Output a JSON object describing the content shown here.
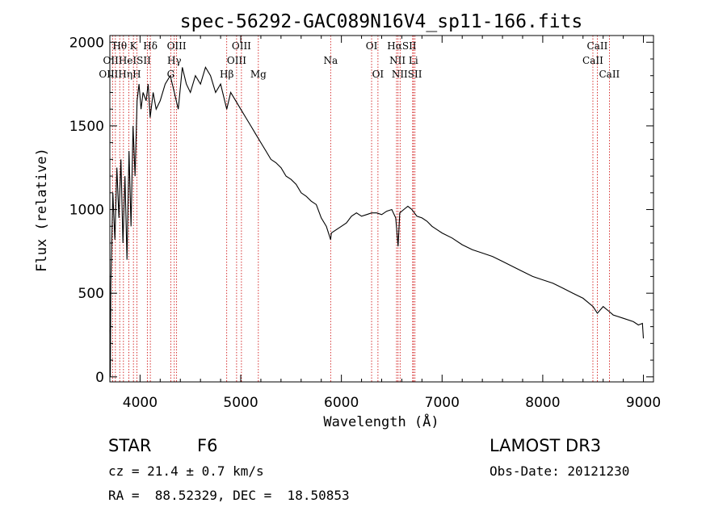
{
  "chart_data": {
    "type": "line",
    "title": "spec-56292-GAC089N16V4_sp11-166.fits",
    "xlabel": "Wavelength (Å)",
    "ylabel": "Flux (relative)",
    "xlim": [
      3700,
      9100
    ],
    "ylim": [
      -30,
      2040
    ],
    "xticks": [
      4000,
      5000,
      6000,
      7000,
      8000,
      9000
    ],
    "xtick_labels": [
      "4000",
      "5000",
      "6000",
      "7000",
      "8000",
      "9000"
    ],
    "yticks": [
      0,
      500,
      1000,
      1500,
      2000
    ],
    "ytick_labels": [
      "0",
      "500",
      "1000",
      "1500",
      "2000"
    ],
    "series": [
      {
        "name": "flux",
        "x": [
          3700,
          3705,
          3710,
          3730,
          3750,
          3770,
          3790,
          3810,
          3830,
          3850,
          3870,
          3890,
          3910,
          3930,
          3950,
          3970,
          3990,
          4010,
          4030,
          4060,
          4080,
          4100,
          4130,
          4160,
          4200,
          4250,
          4300,
          4340,
          4380,
          4420,
          4460,
          4500,
          4550,
          4600,
          4650,
          4700,
          4750,
          4800,
          4861,
          4900,
          4950,
          5000,
          5050,
          5100,
          5150,
          5200,
          5250,
          5300,
          5350,
          5400,
          5450,
          5500,
          5550,
          5600,
          5650,
          5700,
          5750,
          5800,
          5850,
          5893,
          5900,
          5950,
          6000,
          6050,
          6100,
          6150,
          6200,
          6250,
          6300,
          6350,
          6400,
          6450,
          6500,
          6540,
          6563,
          6580,
          6620,
          6660,
          6700,
          6750,
          6800,
          6850,
          6900,
          6950,
          7000,
          7100,
          7200,
          7300,
          7400,
          7500,
          7600,
          7700,
          7800,
          7900,
          8000,
          8100,
          8200,
          8300,
          8400,
          8500,
          8542,
          8600,
          8662,
          8700,
          8800,
          8900,
          8950,
          8990,
          9000
        ],
        "y": [
          280,
          0,
          550,
          1100,
          820,
          1250,
          950,
          1300,
          800,
          1200,
          700,
          1350,
          900,
          1500,
          1200,
          1650,
          1750,
          1600,
          1700,
          1650,
          1750,
          1550,
          1700,
          1600,
          1650,
          1750,
          1800,
          1700,
          1600,
          1850,
          1750,
          1700,
          1800,
          1750,
          1850,
          1800,
          1700,
          1750,
          1600,
          1700,
          1650,
          1600,
          1550,
          1500,
          1450,
          1400,
          1350,
          1300,
          1280,
          1250,
          1200,
          1180,
          1150,
          1100,
          1080,
          1050,
          1030,
          950,
          900,
          820,
          860,
          880,
          900,
          920,
          960,
          980,
          960,
          970,
          980,
          980,
          970,
          990,
          1000,
          950,
          780,
          980,
          1000,
          1020,
          1000,
          960,
          950,
          930,
          900,
          880,
          860,
          830,
          790,
          760,
          740,
          720,
          690,
          660,
          630,
          600,
          580,
          560,
          530,
          500,
          470,
          420,
          380,
          420,
          390,
          370,
          350,
          330,
          310,
          320,
          230
        ]
      }
    ],
    "lines": [
      {
        "name": "Hθ",
        "x": 3798
      },
      {
        "name": "OII",
        "x": 3727
      },
      {
        "name": "OIII",
        "x": 3755
      },
      {
        "name": "Hη",
        "x": 3835
      },
      {
        "name": "HeI",
        "x": 3889
      },
      {
        "name": "K",
        "x": 3934
      },
      {
        "name": "H",
        "x": 3968
      },
      {
        "name": "Hδ",
        "x": 4102
      },
      {
        "name": "SII",
        "x": 4072
      },
      {
        "name": "OIII",
        "x": 4363
      },
      {
        "name": "Hγ",
        "x": 4340
      },
      {
        "name": "G",
        "x": 4305
      },
      {
        "name": "Hβ",
        "x": 4861
      },
      {
        "name": "OIII",
        "x": 4959
      },
      {
        "name": "OIII",
        "x": 5007
      },
      {
        "name": "Mg",
        "x": 5175
      },
      {
        "name": "Na",
        "x": 5893
      },
      {
        "name": "OI",
        "x": 6300
      },
      {
        "name": "OI",
        "x": 6363
      },
      {
        "name": "Hα",
        "x": 6563
      },
      {
        "name": "NII",
        "x": 6548
      },
      {
        "name": "NII",
        "x": 6583
      },
      {
        "name": "Li",
        "x": 6708
      },
      {
        "name": "SII",
        "x": 6716
      },
      {
        "name": "SII",
        "x": 6731
      },
      {
        "name": "CaII",
        "x": 8498
      },
      {
        "name": "CaII",
        "x": 8542
      },
      {
        "name": "CaII",
        "x": 8662
      }
    ],
    "line_labels_row1": [
      {
        "text": "Hθ",
        "x": 3798
      },
      {
        "text": "K",
        "x": 3934
      },
      {
        "text": "Hδ",
        "x": 4102
      },
      {
        "text": "OIII",
        "x": 4363
      },
      {
        "text": "OIII",
        "x": 5007
      },
      {
        "text": "OI",
        "x": 6300
      },
      {
        "text": "HαSII",
        "x": 6600
      },
      {
        "text": "CaII",
        "x": 8542
      }
    ],
    "line_labels_row2": [
      {
        "text": "OIIHeISII",
        "x": 3870
      },
      {
        "text": "Hγ",
        "x": 4340
      },
      {
        "text": "OIII",
        "x": 4959
      },
      {
        "text": "Na",
        "x": 5893
      },
      {
        "text": "NII Li",
        "x": 6620
      },
      {
        "text": "CaII",
        "x": 8498
      }
    ],
    "line_labels_row3": [
      {
        "text": "OIIIHηH",
        "x": 3800
      },
      {
        "text": "G",
        "x": 4305
      },
      {
        "text": "Hβ",
        "x": 4861
      },
      {
        "text": "Mg",
        "x": 5175
      },
      {
        "text": "OI",
        "x": 6363
      },
      {
        "text": "NIISII",
        "x": 6650
      },
      {
        "text": "CaII",
        "x": 8662
      }
    ],
    "grid": false
  },
  "info": {
    "object_class": "STAR",
    "subclass": "F6",
    "survey": "LAMOST DR3",
    "redshift": "cz = 21.4 ± 0.7 km/s",
    "obs_date": "Obs-Date: 20121230",
    "coords": "RA =  88.52329, DEC =  18.50853"
  },
  "colors": {
    "spectrum": "#000000",
    "line_marker": "#cc0000",
    "axes": "#000000"
  }
}
